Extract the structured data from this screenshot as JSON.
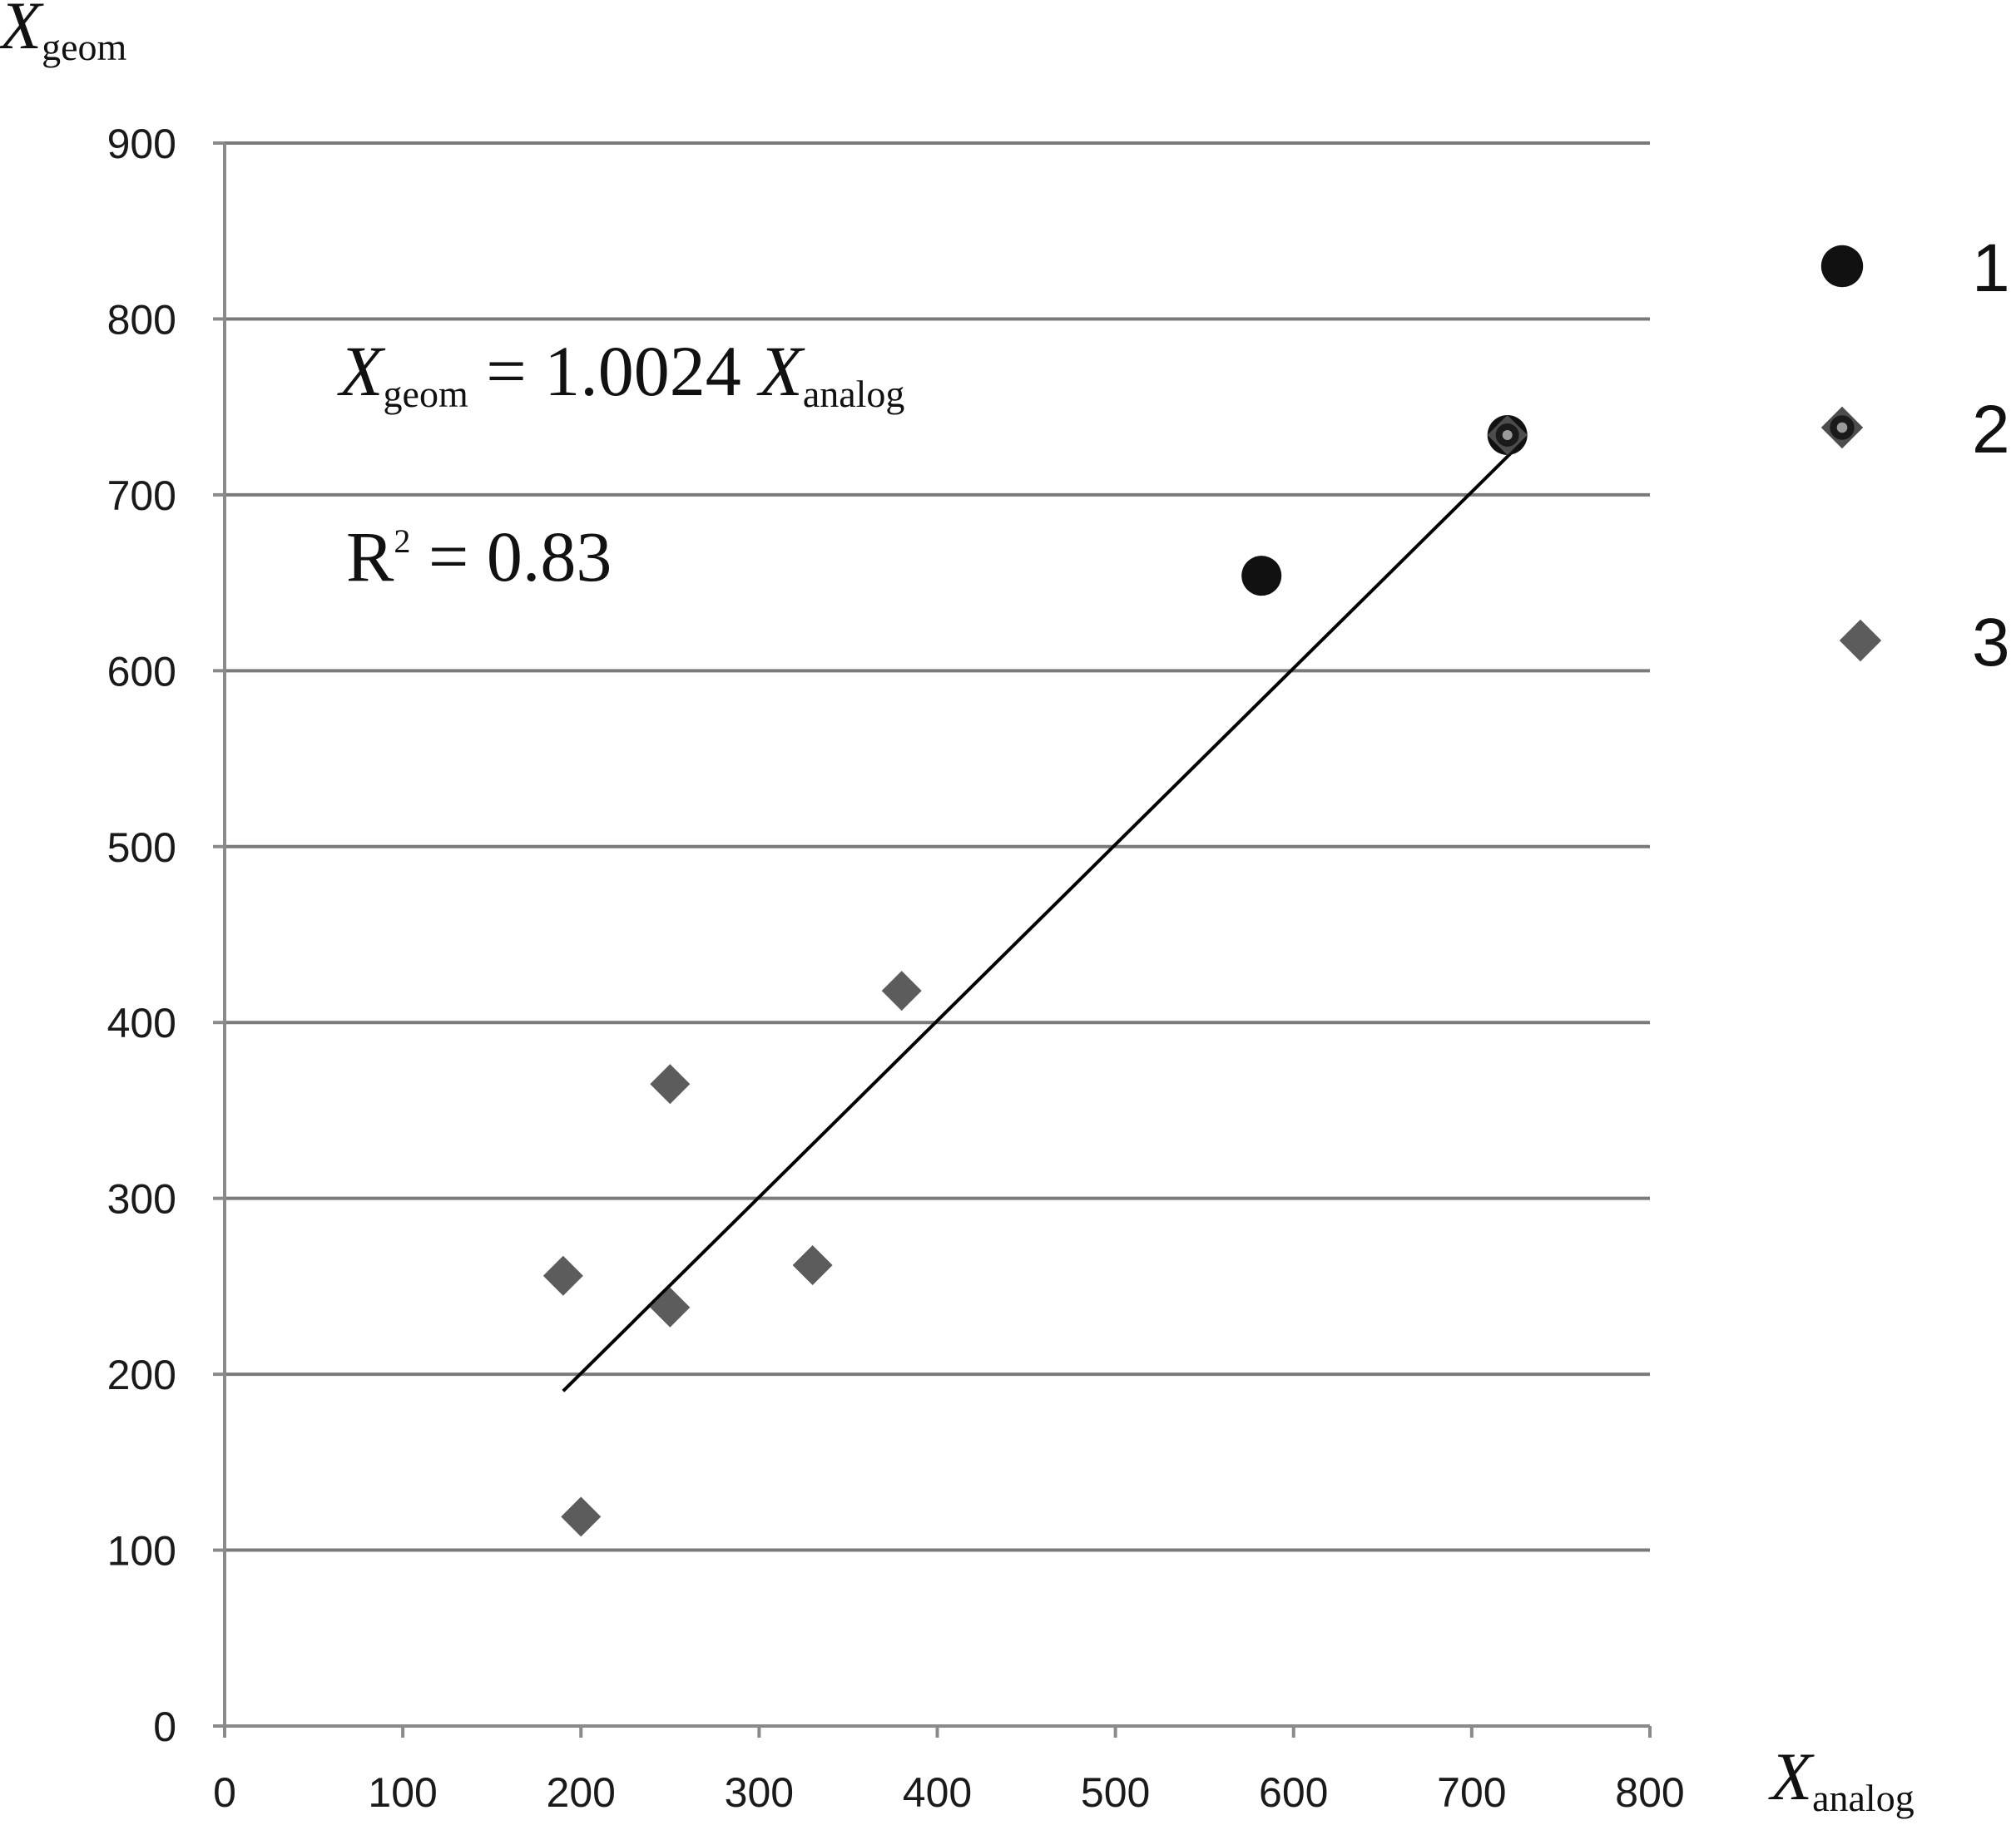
{
  "chart_data": {
    "type": "scatter",
    "xlim": [
      0,
      800
    ],
    "ylim": [
      0,
      900
    ],
    "x_ticks": [
      0,
      100,
      200,
      300,
      400,
      500,
      600,
      700,
      800
    ],
    "y_ticks": [
      0,
      100,
      200,
      300,
      400,
      500,
      600,
      700,
      800,
      900
    ],
    "grid": "horizontal",
    "legend_position": "right",
    "xlabel": {
      "main": "X",
      "sub": "analog"
    },
    "ylabel": {
      "main": "X",
      "sub": "geom"
    },
    "series": [
      {
        "name": "1",
        "marker": "circle",
        "color": "#111111",
        "points": [
          [
            582,
            654
          ],
          [
            720,
            734
          ]
        ]
      },
      {
        "name": "2",
        "marker": "diamond-dot",
        "color": "#4d4d4d",
        "points": [
          [
            720,
            734
          ]
        ]
      },
      {
        "name": "3",
        "marker": "diamond",
        "color": "#5c5c5c",
        "points": [
          [
            190,
            256
          ],
          [
            200,
            119
          ],
          [
            250,
            365
          ],
          [
            250,
            238
          ],
          [
            330,
            262
          ],
          [
            380,
            418
          ]
        ]
      }
    ],
    "trendline": {
      "slope": 1.0024,
      "intercept": 0,
      "x_range": [
        190,
        722
      ]
    },
    "annotations": {
      "equation": {
        "lhs_main": "X",
        "lhs_sub": "geom",
        "middle": " = 1.0024 ",
        "rhs_main": "X",
        "rhs_sub": "analog"
      },
      "r_squared": {
        "base": "R",
        "sup": "2",
        "rest": " = 0.83"
      }
    }
  }
}
